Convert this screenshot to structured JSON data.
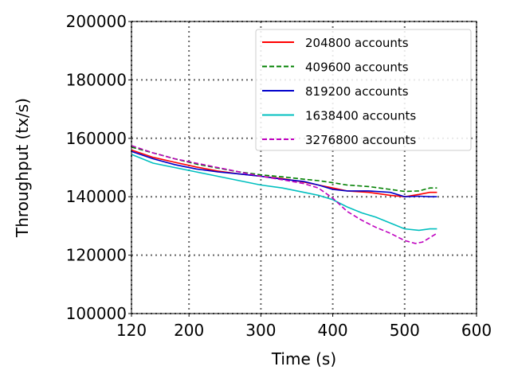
{
  "chart_data": {
    "type": "line",
    "title": "",
    "xlabel": "Time (s)",
    "ylabel": "Throughput (tx/s)",
    "xlim": [
      120,
      600
    ],
    "ylim": [
      100000,
      200000
    ],
    "xticks": [
      120,
      200,
      300,
      400,
      500,
      600
    ],
    "yticks": [
      100000,
      120000,
      140000,
      160000,
      180000,
      200000
    ],
    "grid": true,
    "legend_position": "top-right",
    "series": [
      {
        "name": "204800 accounts",
        "color": "#ff0000",
        "dash": "solid",
        "x": [
          120,
          150,
          180,
          210,
          240,
          270,
          300,
          330,
          360,
          380,
          400,
          420,
          450,
          480,
          500,
          520,
          535,
          545
        ],
        "y": [
          156000,
          153500,
          151800,
          150200,
          148800,
          147800,
          147000,
          146200,
          145000,
          144000,
          143000,
          142000,
          141500,
          140500,
          140000,
          140800,
          141500,
          141500
        ]
      },
      {
        "name": "409600 accounts",
        "color": "#008000",
        "dash": "dashed",
        "x": [
          120,
          150,
          180,
          210,
          240,
          270,
          300,
          330,
          360,
          380,
          400,
          420,
          450,
          480,
          500,
          520,
          535,
          545
        ],
        "y": [
          157000,
          155000,
          153000,
          151200,
          149800,
          148500,
          147500,
          146800,
          146000,
          145500,
          144800,
          144000,
          143500,
          142500,
          141800,
          142000,
          143000,
          143000
        ]
      },
      {
        "name": "819200 accounts",
        "color": "#0000cc",
        "dash": "solid",
        "x": [
          120,
          150,
          180,
          210,
          240,
          270,
          300,
          330,
          360,
          380,
          400,
          420,
          450,
          480,
          500,
          520,
          535,
          545
        ],
        "y": [
          155500,
          153000,
          151000,
          149500,
          148500,
          147800,
          147000,
          146000,
          145200,
          144000,
          142500,
          142000,
          142000,
          141500,
          140000,
          140200,
          140000,
          140000
        ]
      },
      {
        "name": "1638400 accounts",
        "color": "#00bfbf",
        "dash": "solid",
        "x": [
          120,
          150,
          180,
          210,
          240,
          270,
          300,
          330,
          360,
          380,
          400,
          420,
          440,
          460,
          480,
          500,
          520,
          535,
          545
        ],
        "y": [
          154500,
          151500,
          150000,
          148500,
          147000,
          145500,
          144000,
          143000,
          141500,
          140500,
          139000,
          136500,
          134500,
          133000,
          131000,
          129000,
          128500,
          129000,
          129000
        ]
      },
      {
        "name": "3276800 accounts",
        "color": "#bf00bf",
        "dash": "dashed",
        "x": [
          120,
          150,
          180,
          210,
          240,
          270,
          300,
          330,
          360,
          380,
          400,
          420,
          440,
          460,
          480,
          500,
          515,
          525,
          535,
          545
        ],
        "y": [
          157500,
          155000,
          153000,
          151500,
          150000,
          148500,
          147000,
          145800,
          144500,
          143000,
          139500,
          135000,
          132000,
          129500,
          127500,
          125000,
          124000,
          124500,
          126000,
          127500
        ]
      }
    ]
  }
}
